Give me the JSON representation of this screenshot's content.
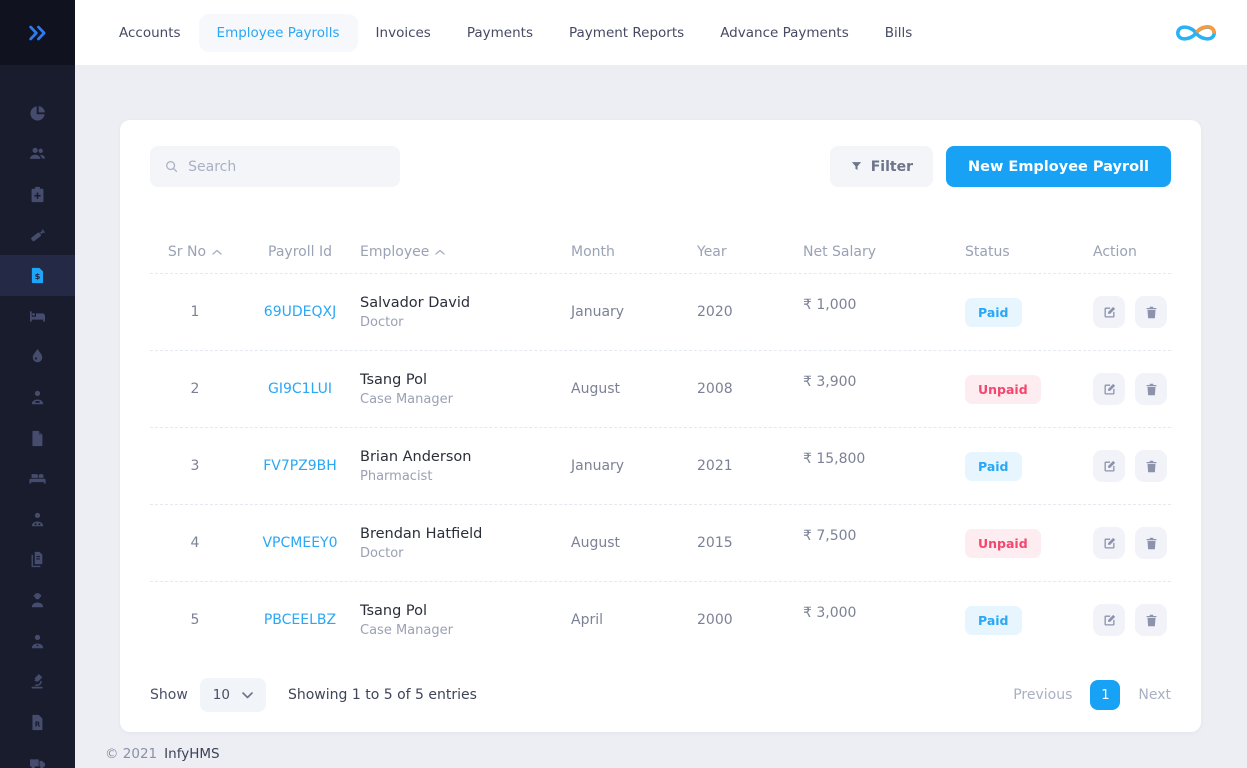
{
  "colors": {
    "accent": "#17a2f5",
    "link": "#2aa7f5",
    "paid_text": "#2aa7f5",
    "paid_bg": "#e7f5fe",
    "unpaid_text": "#f4466f",
    "unpaid_bg": "#fdedf1",
    "sidebar_bg": "#191c2c",
    "sidebar_active_bg": "#242945"
  },
  "topnav": {
    "tabs": [
      {
        "label": "Accounts",
        "active": false
      },
      {
        "label": "Employee Payrolls",
        "active": true
      },
      {
        "label": "Invoices",
        "active": false
      },
      {
        "label": "Payments",
        "active": false
      },
      {
        "label": "Payment Reports",
        "active": false
      },
      {
        "label": "Advance Payments",
        "active": false
      },
      {
        "label": "Bills",
        "active": false
      }
    ],
    "logo_icon": "infinity-logo"
  },
  "sidebar": {
    "toggle_icon": "double-chevron-right",
    "items": [
      {
        "icon": "pie-chart",
        "active": false
      },
      {
        "icon": "users",
        "active": false
      },
      {
        "icon": "clipboard-plus",
        "active": false
      },
      {
        "icon": "syringe",
        "active": false
      },
      {
        "icon": "dollar-document",
        "active": true
      },
      {
        "icon": "bed",
        "active": false
      },
      {
        "icon": "water-drop",
        "active": false
      },
      {
        "icon": "person-badge",
        "active": false
      },
      {
        "icon": "file",
        "active": false
      },
      {
        "icon": "double-bed",
        "active": false
      },
      {
        "icon": "person-glasses",
        "active": false
      },
      {
        "icon": "files",
        "active": false
      },
      {
        "icon": "person-headset",
        "active": false
      },
      {
        "icon": "person",
        "active": false
      },
      {
        "icon": "microscope",
        "active": false
      },
      {
        "icon": "prescription-file",
        "active": false
      },
      {
        "icon": "ambulance",
        "active": false
      }
    ]
  },
  "toolbar": {
    "search_placeholder": "Search",
    "filter_label": "Filter",
    "new_button_label": "New Employee Payroll"
  },
  "table": {
    "columns": [
      {
        "label": "Sr No",
        "sortable": true
      },
      {
        "label": "Payroll Id",
        "sortable": false
      },
      {
        "label": "Employee",
        "sortable": true
      },
      {
        "label": "Month",
        "sortable": false
      },
      {
        "label": "Year",
        "sortable": false
      },
      {
        "label": "Net Salary",
        "sortable": false
      },
      {
        "label": "Status",
        "sortable": false
      },
      {
        "label": "Action",
        "sortable": false
      }
    ],
    "rows": [
      {
        "sr_no": "1",
        "payroll_id": "69UDEQXJ",
        "employee": "Salvador David",
        "role": "Doctor",
        "month": "January",
        "year": "2020",
        "net_salary": "₹ 1,000",
        "status": "Paid"
      },
      {
        "sr_no": "2",
        "payroll_id": "GI9C1LUI",
        "employee": "Tsang Pol",
        "role": "Case Manager",
        "month": "August",
        "year": "2008",
        "net_salary": "₹ 3,900",
        "status": "Unpaid"
      },
      {
        "sr_no": "3",
        "payroll_id": "FV7PZ9BH",
        "employee": "Brian Anderson",
        "role": "Pharmacist",
        "month": "January",
        "year": "2021",
        "net_salary": "₹ 15,800",
        "status": "Paid"
      },
      {
        "sr_no": "4",
        "payroll_id": "VPCMEEY0",
        "employee": "Brendan Hatfield",
        "role": "Doctor",
        "month": "August",
        "year": "2015",
        "net_salary": "₹ 7,500",
        "status": "Unpaid"
      },
      {
        "sr_no": "5",
        "payroll_id": "PBCEELBZ",
        "employee": "Tsang Pol",
        "role": "Case Manager",
        "month": "April",
        "year": "2000",
        "net_salary": "₹ 3,000",
        "status": "Paid"
      }
    ]
  },
  "pagination": {
    "show_label": "Show",
    "page_size": "10",
    "entries_text": "Showing 1 to 5 of 5 entries",
    "previous_label": "Previous",
    "current_page": "1",
    "next_label": "Next"
  },
  "footer": {
    "copyright": "© 2021",
    "brand": "InfyHMS"
  }
}
